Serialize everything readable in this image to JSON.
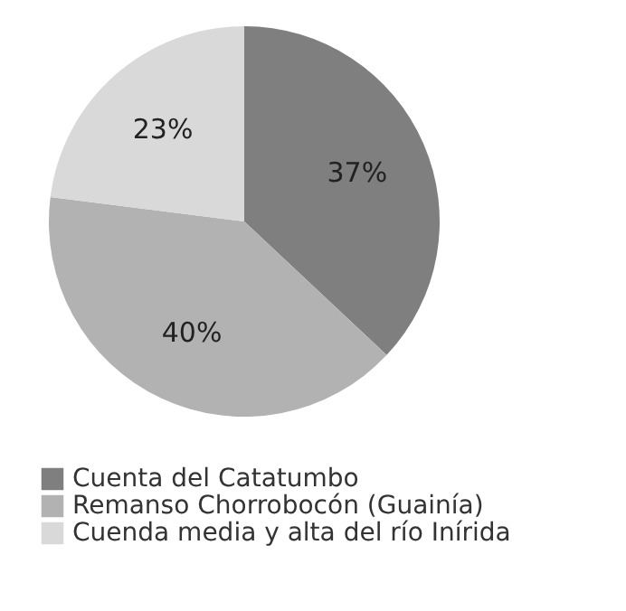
{
  "chart_data": {
    "type": "pie",
    "categories": [
      "Cuenta del Catatumbo",
      "Remanso Chorrobocón (Guainía)",
      "Cuenda media y alta del río Inírida"
    ],
    "values": [
      37,
      40,
      23
    ],
    "value_labels": [
      "37%",
      "40%",
      "23%"
    ],
    "colors": [
      "#7f7f7f",
      "#b2b2b2",
      "#d9d9d9"
    ],
    "legend": "bottom"
  }
}
